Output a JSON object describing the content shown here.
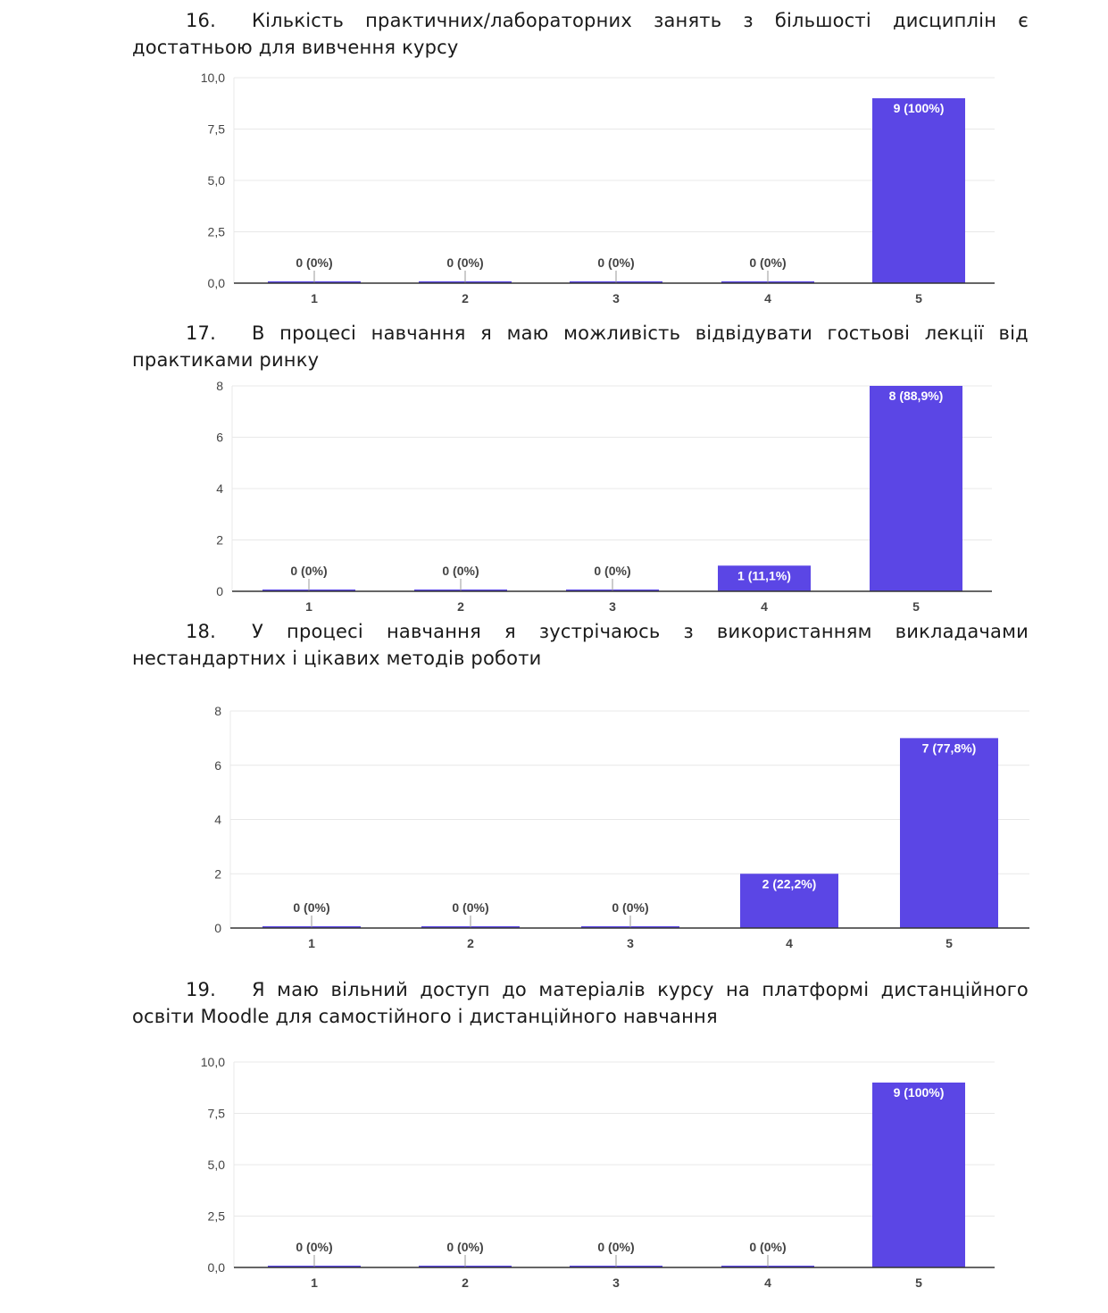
{
  "questions": [
    {
      "number": "16.",
      "line1": "Кількість практичних/лабораторних занять з більшості дисциплін є",
      "line2": "достатньою для вивчення курсу"
    },
    {
      "number": "17.",
      "line1": "В процесі навчання я маю можливість відвідувати гостьові лекції від",
      "line2": "практиками ринку"
    },
    {
      "number": "18.",
      "line1": "У процесі навчання я зустрічаюсь з використанням викладачами",
      "line2": "нестандартних і цікавих методів роботи"
    },
    {
      "number": "19.",
      "line1": "Я маю вільний доступ до матеріалів курсу на платформі дистанційного",
      "line2": "освіти Moodle для самостійного і дистанційного навчання"
    }
  ],
  "colors": {
    "bar": "#5b46e5",
    "grid": "#e8e8e8",
    "axis": "#333333",
    "label": "#444444",
    "bar_label": "#ffffff"
  },
  "chart_data": [
    {
      "type": "bar",
      "categories": [
        "1",
        "2",
        "3",
        "4",
        "5"
      ],
      "values": [
        0,
        0,
        0,
        0,
        9
      ],
      "data_labels": [
        "0 (0%)",
        "0 (0%)",
        "0 (0%)",
        "0 (0%)",
        "9 (100%)"
      ],
      "yticks": [
        "0,0",
        "2,5",
        "5,0",
        "7,5",
        "10,0"
      ],
      "ylim": [
        0,
        10
      ],
      "grid": true
    },
    {
      "type": "bar",
      "categories": [
        "1",
        "2",
        "3",
        "4",
        "5"
      ],
      "values": [
        0,
        0,
        0,
        1,
        8
      ],
      "data_labels": [
        "0 (0%)",
        "0 (0%)",
        "0 (0%)",
        "1 (11,1%)",
        "8 (88,9%)"
      ],
      "yticks": [
        "0",
        "2",
        "4",
        "6",
        "8"
      ],
      "ylim": [
        0,
        8
      ],
      "grid": true
    },
    {
      "type": "bar",
      "categories": [
        "1",
        "2",
        "3",
        "4",
        "5"
      ],
      "values": [
        0,
        0,
        0,
        2,
        7
      ],
      "data_labels": [
        "0 (0%)",
        "0 (0%)",
        "0 (0%)",
        "2 (22,2%)",
        "7 (77,8%)"
      ],
      "yticks": [
        "0",
        "2",
        "4",
        "6",
        "8"
      ],
      "ylim": [
        0,
        8
      ],
      "grid": true
    },
    {
      "type": "bar",
      "categories": [
        "1",
        "2",
        "3",
        "4",
        "5"
      ],
      "values": [
        0,
        0,
        0,
        0,
        9
      ],
      "data_labels": [
        "0 (0%)",
        "0 (0%)",
        "0 (0%)",
        "0 (0%)",
        "9 (100%)"
      ],
      "yticks": [
        "0,0",
        "2,5",
        "5,0",
        "7,5",
        "10,0"
      ],
      "ylim": [
        0,
        10
      ],
      "grid": true
    }
  ]
}
